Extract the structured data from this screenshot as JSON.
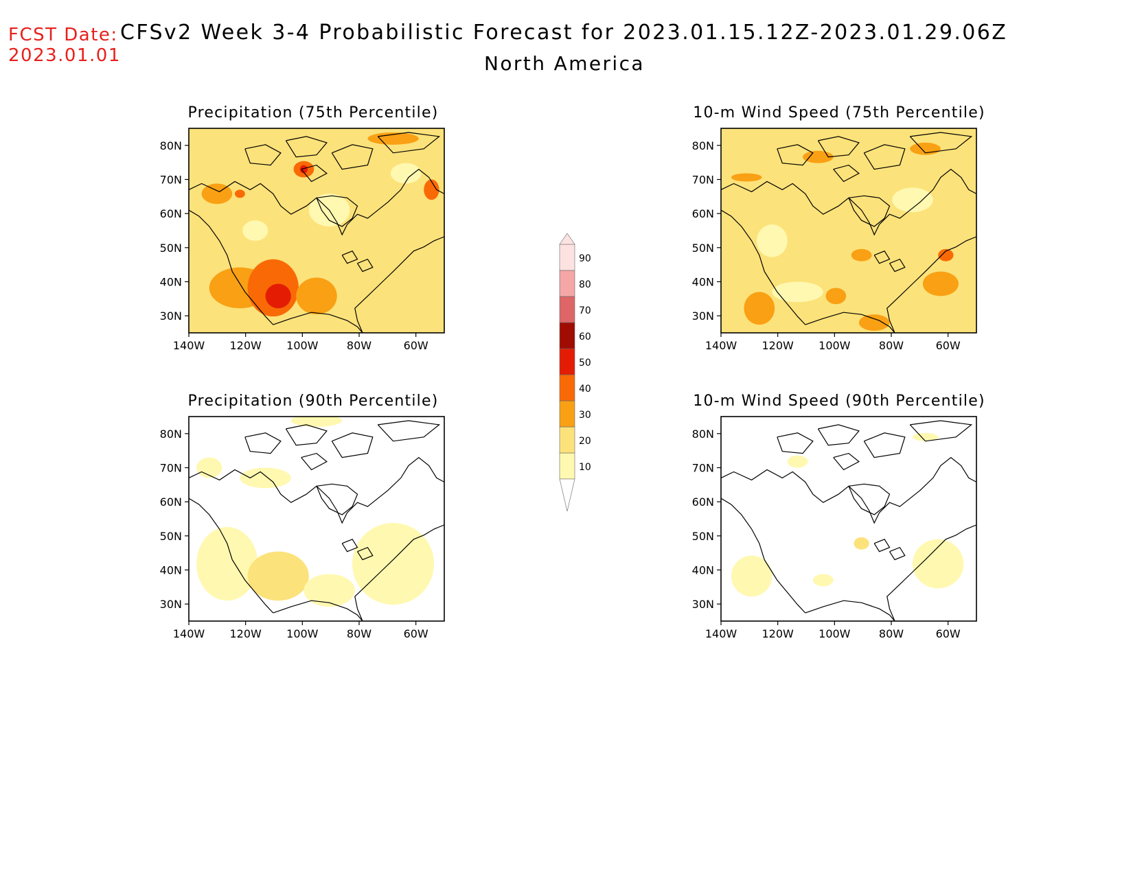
{
  "header": {
    "fcst_label": "FCST Date:",
    "fcst_date": "2023.01.01",
    "title": "CFSv2 Week 3-4 Probabilistic Forecast for 2023.01.15.12Z-2023.01.29.06Z",
    "subtitle": "North America"
  },
  "colors": {
    "c10": "#fff8b0",
    "c20": "#fce27a",
    "c30": "#f9a014",
    "c40": "#f96a06",
    "c50": "#e41c04",
    "c60": "#a00c02",
    "c70": "#de6666",
    "c80": "#f5a6a6",
    "c90": "#fde2e2",
    "land_outline": "#000000"
  },
  "axes": {
    "lat_ticks": [
      "80N",
      "70N",
      "60N",
      "50N",
      "40N",
      "30N"
    ],
    "lon_ticks": [
      "140W",
      "120W",
      "100W",
      "80W",
      "60W"
    ]
  },
  "panels": [
    {
      "id": "precip75",
      "title": "Precipitation (75th Percentile)",
      "variable": "Precipitation",
      "percentile": 75,
      "base_category": "20-30"
    },
    {
      "id": "wind75",
      "title": "10-m Wind Speed (75th Percentile)",
      "variable": "10-m Wind Speed",
      "percentile": 75,
      "base_category": "20-30"
    },
    {
      "id": "precip90",
      "title": "Precipitation (90th Percentile)",
      "variable": "Precipitation",
      "percentile": 90,
      "base_category": "below 10"
    },
    {
      "id": "wind90",
      "title": "10-m Wind Speed (90th Percentile)",
      "variable": "10-m Wind Speed",
      "percentile": 90,
      "base_category": "below 10"
    }
  ],
  "colorbar": {
    "levels": [
      "10",
      "20",
      "30",
      "40",
      "50",
      "60",
      "70",
      "80",
      "90"
    ],
    "colors": [
      "#fff8b0",
      "#fce27a",
      "#f9a014",
      "#f96a06",
      "#e41c04",
      "#a00c02",
      "#de6666",
      "#f5a6a6",
      "#fde2e2"
    ]
  }
}
